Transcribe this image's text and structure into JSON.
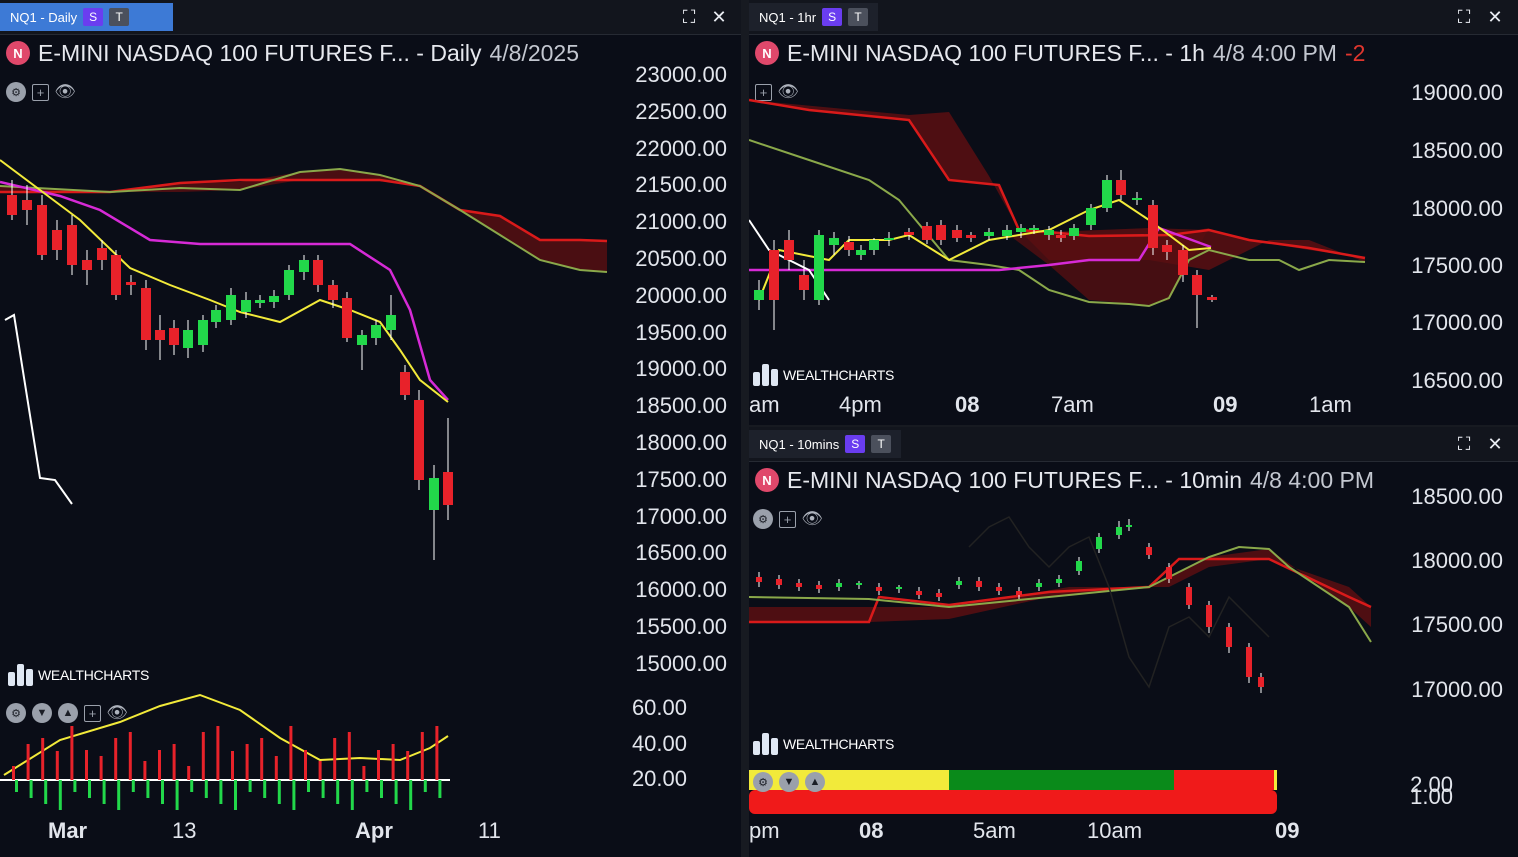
{
  "panels": {
    "daily": {
      "tab": {
        "label": "NQ1 - Daily",
        "s": "S",
        "t": "T"
      },
      "symbol_badge": "N",
      "title": "E-MINI NASDAQ 100 FUTURES F... - Daily",
      "date": "4/8/2025",
      "price_labels": [
        "23000.00",
        "22500.00",
        "22000.00",
        "21500.00",
        "21000.00",
        "20500.00",
        "20000.00",
        "19500.00",
        "19000.00",
        "18500.00",
        "18000.00",
        "17500.00",
        "17000.00",
        "16500.00",
        "16000.00",
        "15500.00",
        "15000.00"
      ],
      "sub_labels": [
        "60.00",
        "40.00",
        "20.00"
      ],
      "time_labels": [
        "Mar",
        "13",
        "Apr",
        "11"
      ],
      "watermark": "WEALTHCHARTS"
    },
    "hourly": {
      "tab": {
        "label": "NQ1 - 1hr",
        "s": "S",
        "t": "T"
      },
      "symbol_badge": "N",
      "title": "E-MINI NASDAQ 100 FUTURES F... - 1h",
      "date": "4/8 4:00 PM",
      "change": "-2",
      "price_labels": [
        "19000.00",
        "18500.00",
        "18000.00",
        "17500.00",
        "17000.00",
        "16500.00"
      ],
      "time_labels": [
        "am",
        "4pm",
        "08",
        "7am",
        "09",
        "1am"
      ],
      "watermark": "WEALTHCHARTS"
    },
    "tenmin": {
      "tab": {
        "label": "NQ1 - 10mins",
        "s": "S",
        "t": "T"
      },
      "symbol_badge": "N",
      "title": "E-MINI NASDAQ 100 FUTURES F... - 10min",
      "date": "4/8 4:00 PM",
      "price_labels": [
        "18500.00",
        "18000.00",
        "17500.00",
        "17000.00"
      ],
      "sub_labels": [
        "2.00",
        "1.00"
      ],
      "time_labels": [
        "pm",
        "08",
        "5am",
        "10am",
        "09"
      ],
      "watermark": "WEALTHCHARTS"
    }
  },
  "icons": {
    "maximize": "⛶",
    "close": "✕",
    "eye": "👁",
    "plus": "+"
  },
  "colors": {
    "background": "#0a0d17",
    "bull": "#22d84a",
    "bear": "#e8222a",
    "conversion": "#f2ea3a",
    "baseline": "#d62ad6",
    "kumo_red": "#e01e1e",
    "kumo_green": "#8aa84a",
    "tab_active": "#3d7ad6"
  }
}
